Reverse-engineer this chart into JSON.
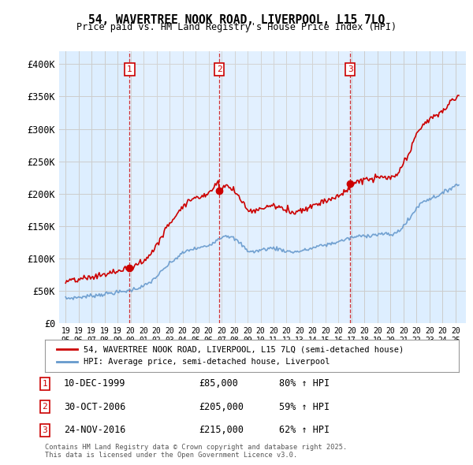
{
  "title": "54, WAVERTREE NOOK ROAD, LIVERPOOL, L15 7LQ",
  "subtitle": "Price paid vs. HM Land Registry's House Price Index (HPI)",
  "ylim": [
    0,
    420000
  ],
  "yticks": [
    0,
    50000,
    100000,
    150000,
    200000,
    250000,
    300000,
    350000,
    400000
  ],
  "ytick_labels": [
    "£0",
    "£50K",
    "£100K",
    "£150K",
    "£200K",
    "£250K",
    "£300K",
    "£350K",
    "£400K"
  ],
  "transactions": [
    {
      "num": 1,
      "date": "10-DEC-1999",
      "price": 85000,
      "year": 1999.92,
      "hpi_pct": "80% ↑ HPI"
    },
    {
      "num": 2,
      "date": "30-OCT-2006",
      "price": 205000,
      "year": 2006.83,
      "hpi_pct": "59% ↑ HPI"
    },
    {
      "num": 3,
      "date": "24-NOV-2016",
      "price": 215000,
      "year": 2016.9,
      "hpi_pct": "62% ↑ HPI"
    }
  ],
  "legend_line1": "54, WAVERTREE NOOK ROAD, LIVERPOOL, L15 7LQ (semi-detached house)",
  "legend_line2": "HPI: Average price, semi-detached house, Liverpool",
  "footnote1": "Contains HM Land Registry data © Crown copyright and database right 2025.",
  "footnote2": "This data is licensed under the Open Government Licence v3.0.",
  "red_color": "#cc0000",
  "blue_color": "#6699cc",
  "bg_color": "#ffffff",
  "grid_color": "#cccccc",
  "shade_color": "#ddeeff",
  "xlim_left": 1994.5,
  "xlim_right": 2025.8
}
